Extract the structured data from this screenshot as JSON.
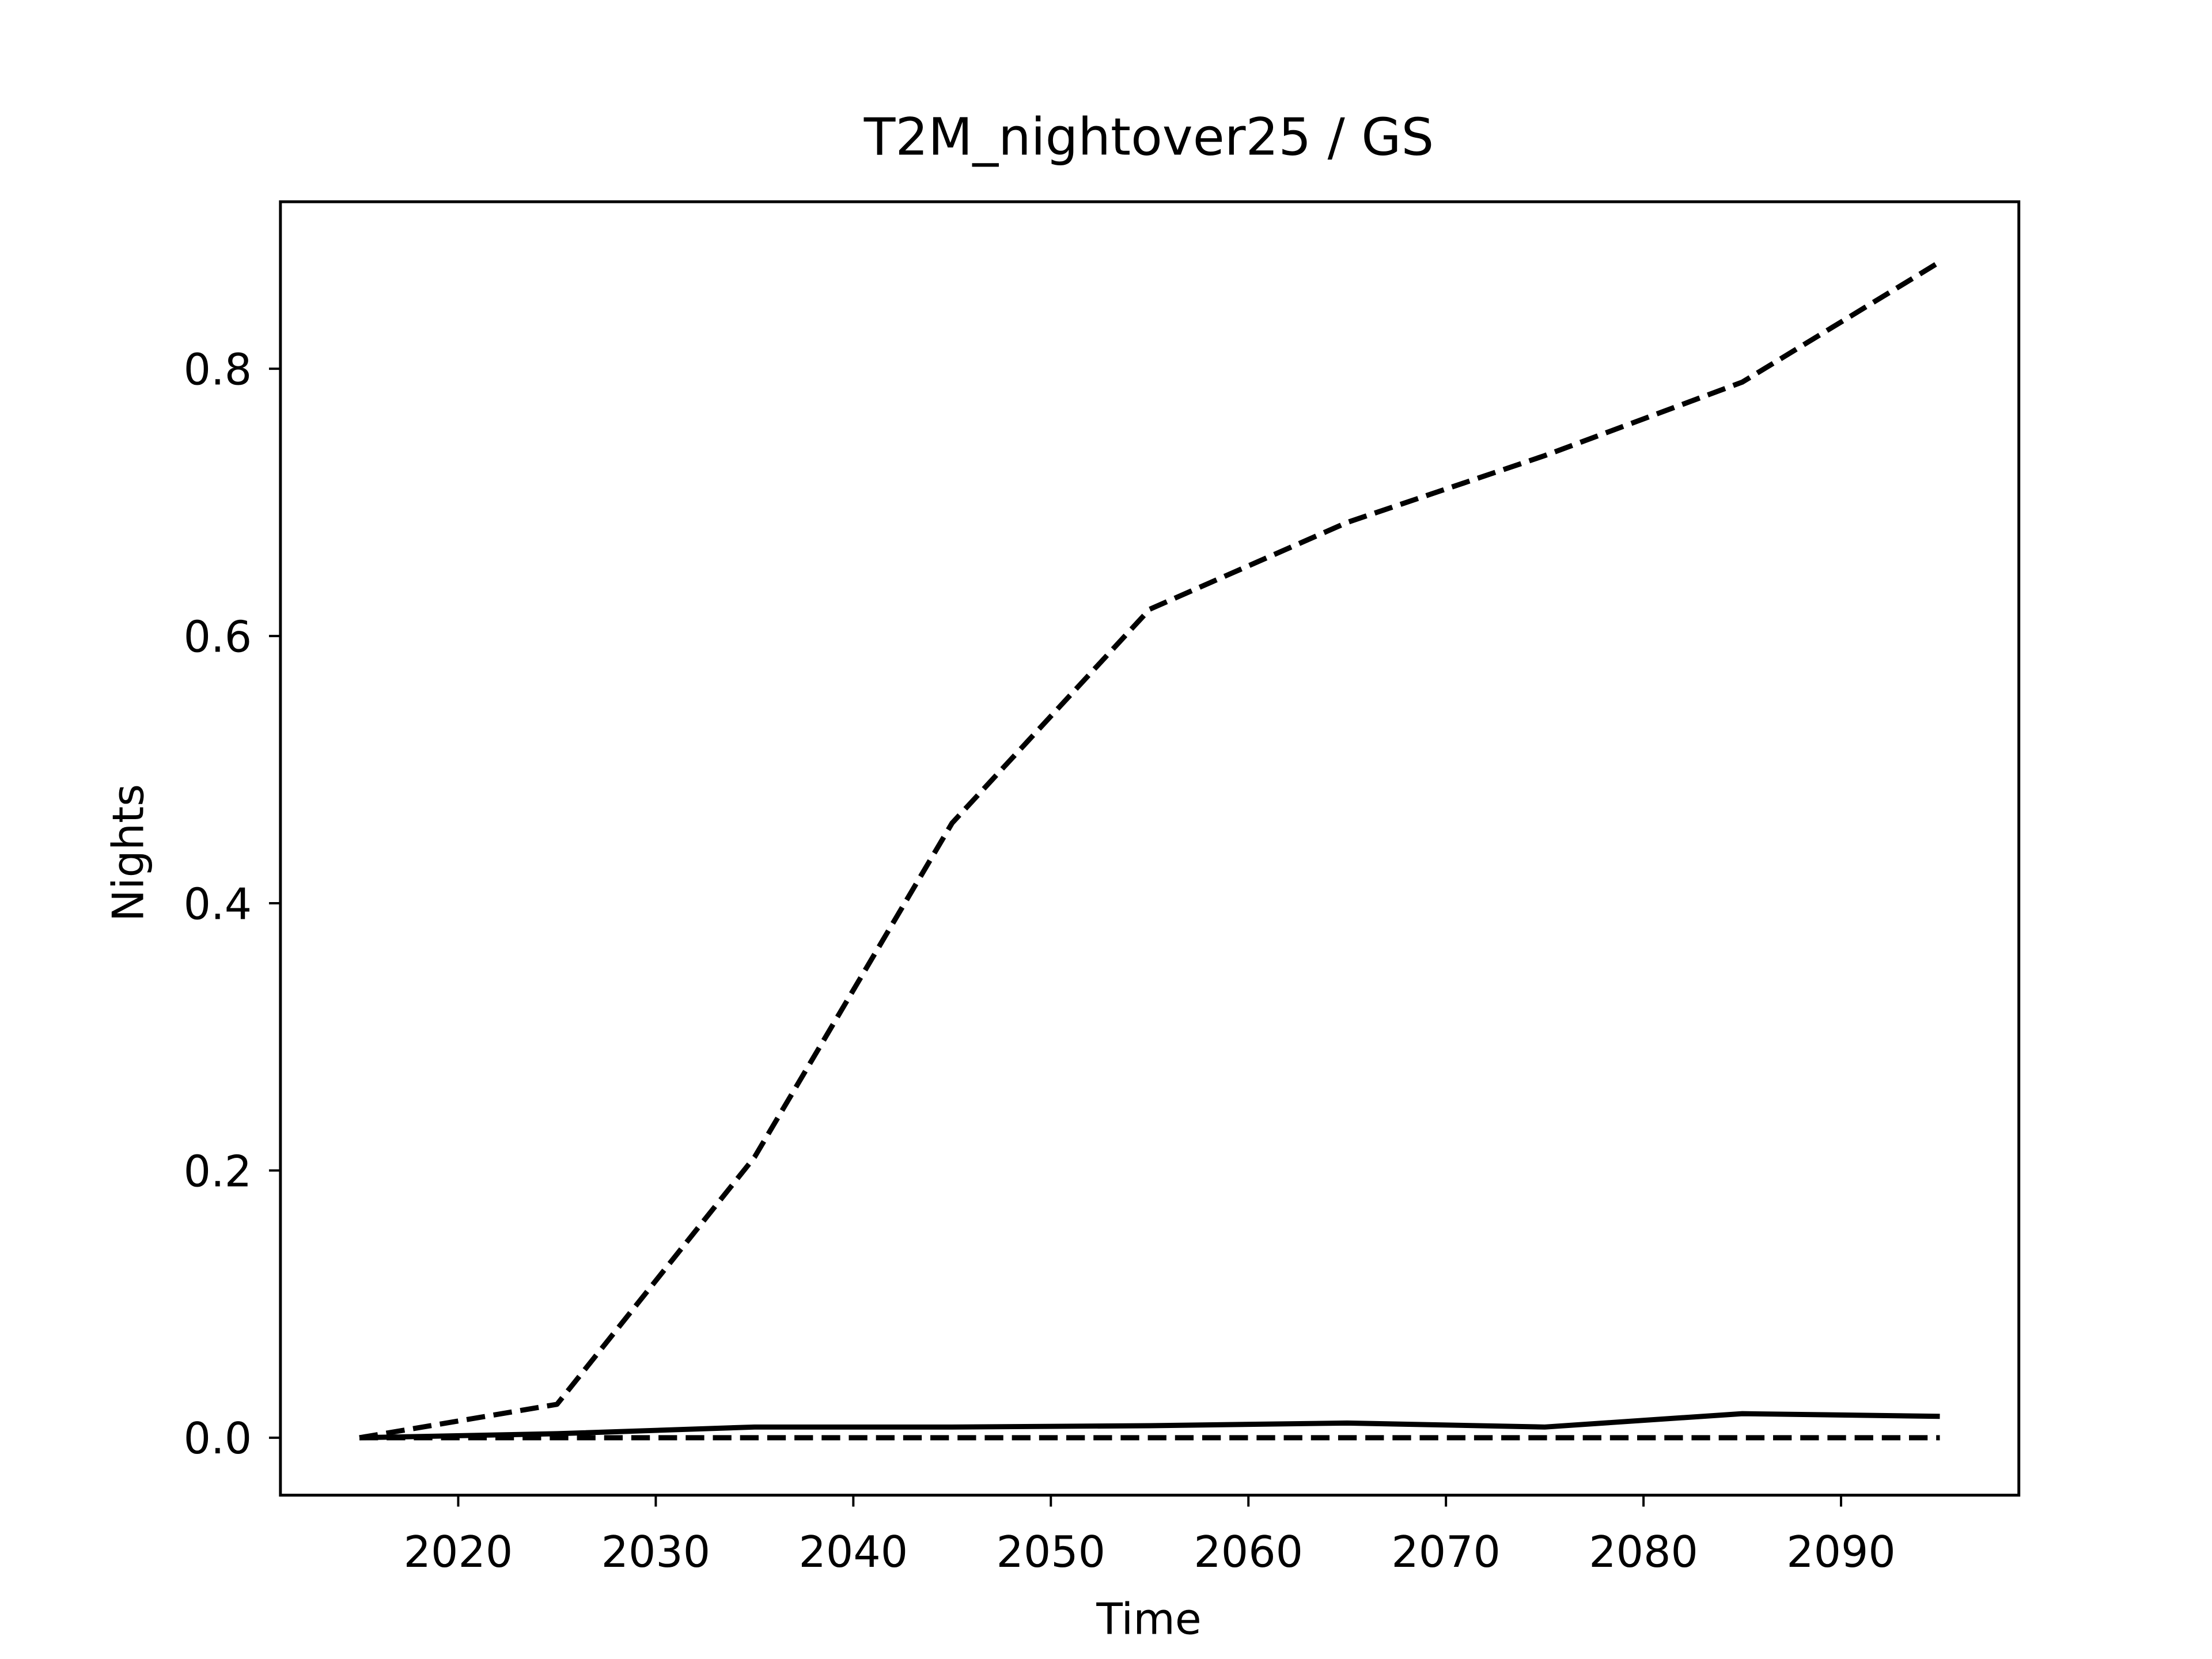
{
  "chart_data": {
    "type": "line",
    "title": "T2M_nightover25 / GS",
    "x_label": "Time",
    "y_label": "Nights",
    "x": [
      2015,
      2025,
      2035,
      2045,
      2055,
      2065,
      2075,
      2085,
      2095
    ],
    "series": [
      {
        "color": "#000000",
        "linestyle": "dashed",
        "values": [
          0,
          0.025,
          0.21,
          0.46,
          0.62,
          0.685,
          0.735,
          0.79,
          0.88
        ]
      },
      {
        "color": "#000000",
        "linestyle": "solid",
        "values": [
          0,
          0.003,
          0.008,
          0.008,
          0.009,
          0.011,
          0.008,
          0.018,
          0.016
        ]
      },
      {
        "color": "#000000",
        "linestyle": "dashed",
        "values": [
          0,
          0,
          0,
          0,
          0,
          0,
          0,
          0,
          0
        ]
      }
    ],
    "xlim": [
      2011,
      2099
    ],
    "xticks": [
      2020,
      2030,
      2040,
      2050,
      2060,
      2070,
      2080,
      2090
    ],
    "ylim": [
      -0.043,
      0.925
    ],
    "yticks": [
      {
        "value": 0,
        "label": "0.0"
      },
      0.2,
      0.4,
      0.6,
      0.8
    ],
    "grid": false
  }
}
